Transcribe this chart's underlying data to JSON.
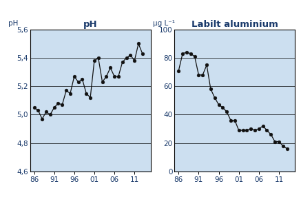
{
  "ph_x": [
    1986,
    1987,
    1988,
    1989,
    1990,
    1991,
    1992,
    1993,
    1994,
    1995,
    1996,
    1997,
    1998,
    1999,
    2000,
    2001,
    2002,
    2003,
    2004,
    2005,
    2006,
    2007,
    2008,
    2009,
    2010,
    2011,
    2012,
    2013
  ],
  "ph_y": [
    5.05,
    5.03,
    4.97,
    5.02,
    5.0,
    5.05,
    5.08,
    5.07,
    5.17,
    5.15,
    5.27,
    5.23,
    5.25,
    5.15,
    5.12,
    5.38,
    5.4,
    5.23,
    5.27,
    5.33,
    5.27,
    5.27,
    5.37,
    5.4,
    5.42,
    5.38,
    5.5,
    5.43
  ],
  "al_x": [
    1986,
    1987,
    1988,
    1989,
    1990,
    1991,
    1992,
    1993,
    1994,
    1995,
    1996,
    1997,
    1998,
    1999,
    2000,
    2001,
    2002,
    2003,
    2004,
    2005,
    2006,
    2007,
    2008,
    2009,
    2010,
    2011,
    2012,
    2013
  ],
  "al_y": [
    71,
    83,
    84,
    83,
    81,
    68,
    68,
    75,
    58,
    52,
    47,
    45,
    42,
    36,
    36,
    29,
    29,
    29,
    30,
    29,
    30,
    32,
    29,
    26,
    21,
    21,
    18,
    16
  ],
  "ph_title": "pH",
  "al_title": "Labilt aluminium",
  "ph_unit_label": "pH",
  "al_unit_label": "μg L⁻¹",
  "ph_xlim": [
    1985,
    2015
  ],
  "ph_ylim": [
    4.6,
    5.6
  ],
  "al_xlim": [
    1985,
    2015
  ],
  "al_ylim": [
    0,
    100
  ],
  "xtick_labels": [
    "86",
    "91",
    "96",
    "01",
    "06",
    "11"
  ],
  "xtick_positions": [
    1986,
    1991,
    1996,
    2001,
    2006,
    2011
  ],
  "ph_yticks": [
    4.6,
    4.8,
    5.0,
    5.2,
    5.4,
    5.6
  ],
  "al_yticks": [
    0,
    20,
    40,
    60,
    80,
    100
  ],
  "bg_color": "#ccdff0",
  "line_color": "#111111",
  "marker_color": "#111111",
  "title_color": "#1a3a6b",
  "label_color": "#1a3a6b",
  "tick_color": "#1a3a6b",
  "spine_color": "#000000"
}
